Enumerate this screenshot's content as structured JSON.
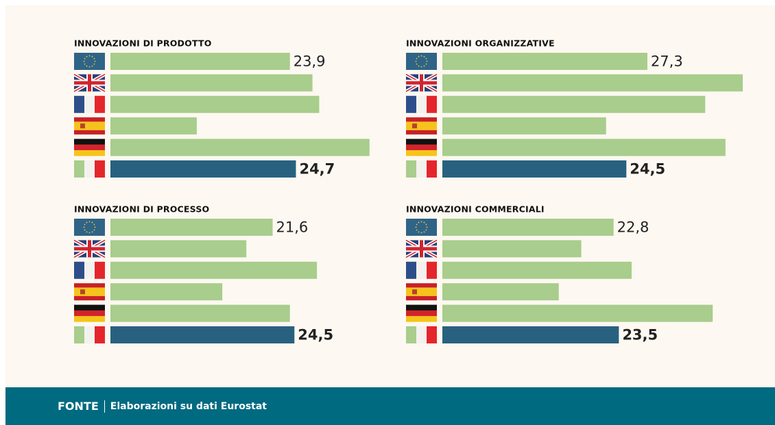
{
  "chart_data": [
    {
      "type": "bar",
      "title": "INNOVAZIONI DI PRODOTTO",
      "categories": [
        null,
        null,
        null,
        null,
        null,
        null
      ],
      "values": [
        23.9,
        26.9,
        27.8,
        11.5,
        34.5,
        24.7
      ],
      "value_labels": [
        "23,9",
        null,
        null,
        null,
        null,
        "24,7"
      ],
      "colors": [
        "#a8cd8c",
        "#a8cd8c",
        "#a8cd8c",
        "#a8cd8c",
        "#a8cd8c",
        "#28617f"
      ],
      "xlim": [
        0,
        40
      ]
    },
    {
      "type": "bar",
      "title": "INNOVAZIONI ORGANIZZATIVE",
      "categories": [
        null,
        null,
        null,
        null,
        null,
        null
      ],
      "values": [
        27.3,
        40.0,
        35.0,
        21.8,
        37.7,
        24.5
      ],
      "value_labels": [
        "27,3",
        null,
        null,
        null,
        null,
        "24,5"
      ],
      "colors": [
        "#a8cd8c",
        "#a8cd8c",
        "#a8cd8c",
        "#a8cd8c",
        "#a8cd8c",
        "#28617f"
      ],
      "xlim": [
        0,
        40
      ]
    },
    {
      "type": "bar",
      "title": "INNOVAZIONI DI PROCESSO",
      "categories": [
        null,
        null,
        null,
        null,
        null,
        null
      ],
      "values": [
        21.6,
        18.1,
        27.5,
        14.9,
        23.9,
        24.5
      ],
      "value_labels": [
        "21,6",
        null,
        null,
        null,
        null,
        "24,5"
      ],
      "colors": [
        "#a8cd8c",
        "#a8cd8c",
        "#a8cd8c",
        "#a8cd8c",
        "#a8cd8c",
        "#28617f"
      ],
      "xlim": [
        0,
        40
      ]
    },
    {
      "type": "bar",
      "title": "INNOVAZIONI COMMERCIALI",
      "categories": [
        null,
        null,
        null,
        null,
        null,
        null
      ],
      "values": [
        22.8,
        18.5,
        25.2,
        15.5,
        36.0,
        23.5
      ],
      "value_labels": [
        "22,8",
        null,
        null,
        null,
        null,
        "23,5"
      ],
      "colors": [
        "#a8cd8c",
        "#a8cd8c",
        "#a8cd8c",
        "#a8cd8c",
        "#a8cd8c",
        "#28617f"
      ],
      "xlim": [
        0,
        40
      ]
    }
  ],
  "source": {
    "label": "FONTE",
    "text": "Elaborazioni su dati Eurostat"
  }
}
